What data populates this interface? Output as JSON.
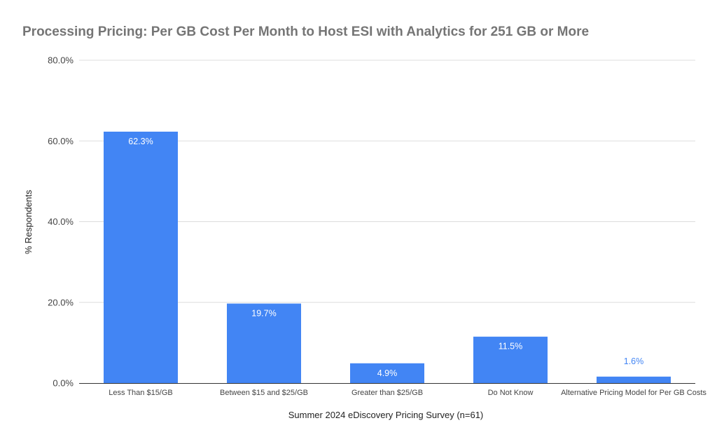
{
  "chart_data": {
    "type": "bar",
    "title": "Processing Pricing: Per GB Cost Per Month to Host ESI with Analytics for 251 GB or More",
    "xlabel": "Summer 2024 eDiscovery Pricing Survey (n=61)",
    "ylabel": "% Respondents",
    "categories": [
      "Less Than $15/GB",
      "Between $15 and $25/GB",
      "Greater than $25/GB",
      "Do Not Know",
      "Alternative Pricing Model for Per GB Costs"
    ],
    "values": [
      62.3,
      19.7,
      4.9,
      11.5,
      1.6
    ],
    "value_labels": [
      "62.3%",
      "19.7%",
      "4.9%",
      "11.5%",
      "1.6%"
    ],
    "ylim": [
      0,
      80
    ],
    "yticks": [
      0,
      20,
      40,
      60,
      80
    ],
    "ytick_labels": [
      "0.0%",
      "20.0%",
      "40.0%",
      "60.0%",
      "80.0%"
    ],
    "grid": true,
    "legend": "none",
    "bar_color": "#4285f4"
  }
}
